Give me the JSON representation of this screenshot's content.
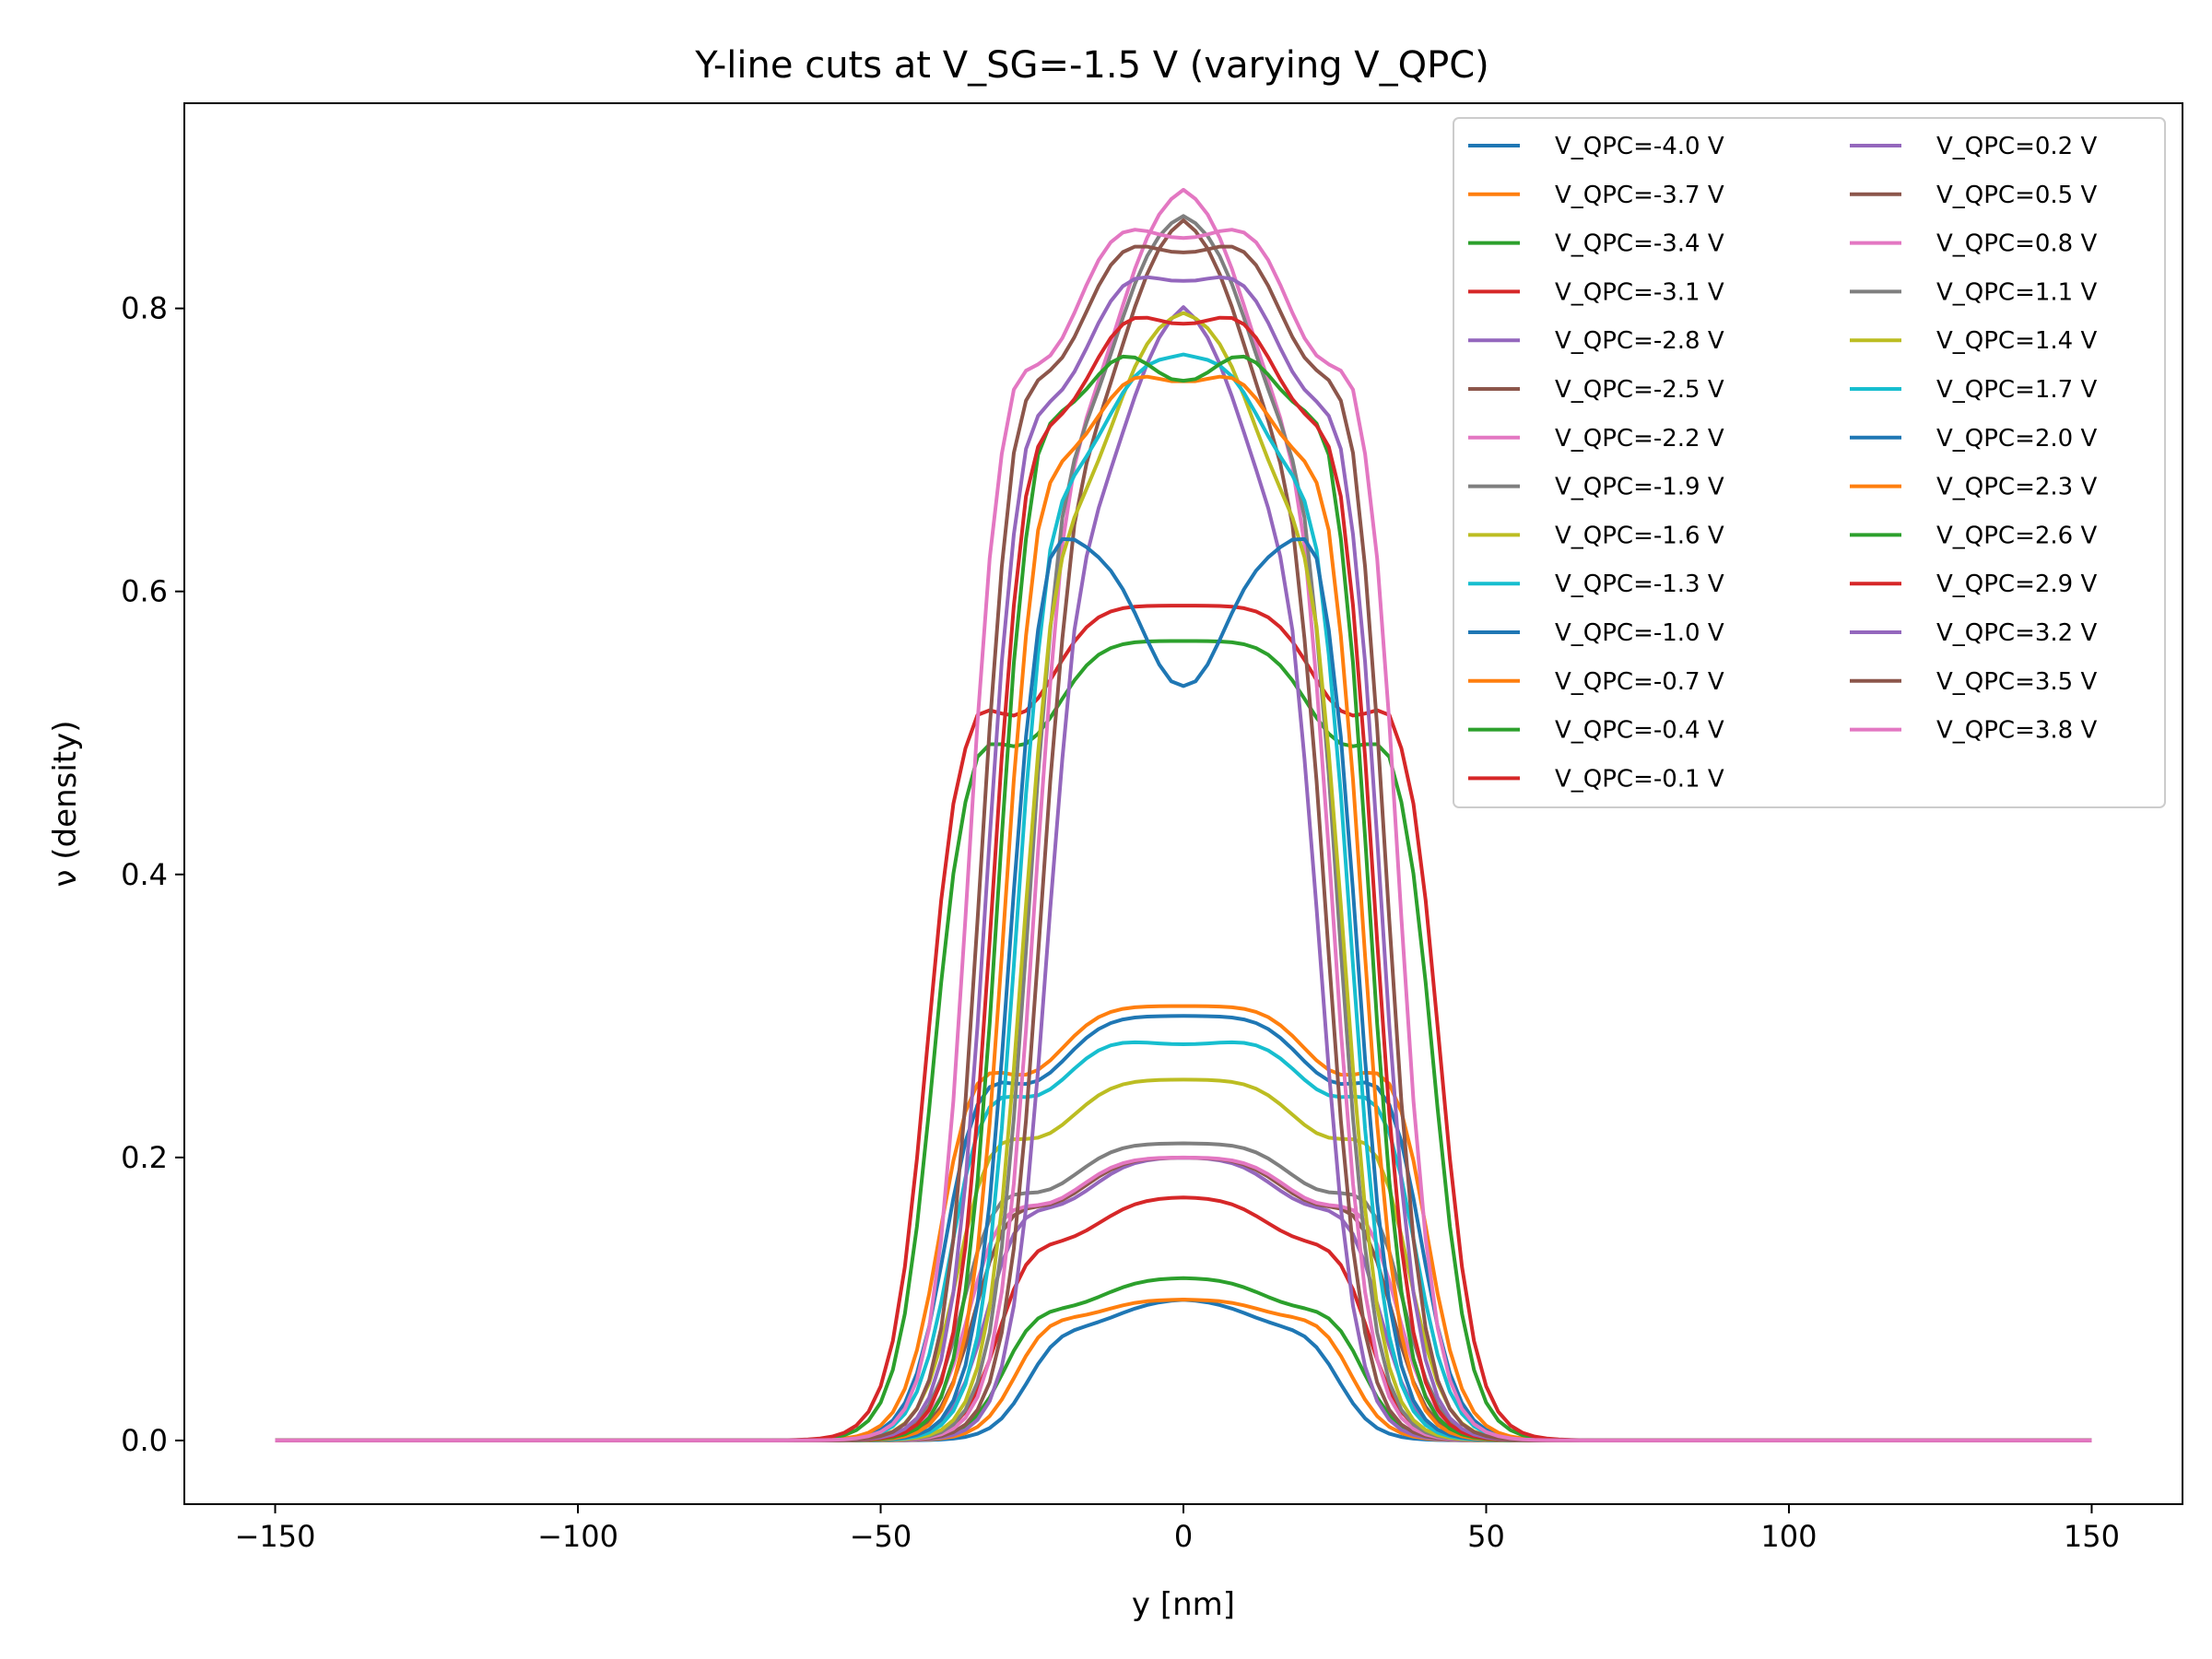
{
  "chart_data": {
    "type": "line",
    "title": "Y-line cuts at V_SG=-1.5 V (varying V_QPC)",
    "xlabel": "y [nm]",
    "ylabel": "ν (density)",
    "xlim": [
      -165,
      165
    ],
    "ylim": [
      -0.045,
      0.945
    ],
    "xticks": [
      -150,
      -100,
      -50,
      0,
      50,
      100,
      150
    ],
    "xtick_labels": [
      "−150",
      "−100",
      "−50",
      "0",
      "50",
      "100",
      "150"
    ],
    "yticks": [
      0.0,
      0.2,
      0.4,
      0.6,
      0.8
    ],
    "ytick_labels": [
      "0.0",
      "0.2",
      "0.4",
      "0.6",
      "0.8"
    ],
    "grid": false,
    "legend_position": "top-right",
    "legend_columns": 2,
    "series": [
      {
        "name": "V_QPC=-4.0 V",
        "color": "#1f77b4",
        "profile": {
          "width": 25,
          "peak": 0.1,
          "center_dip": 0.0
        }
      },
      {
        "name": "V_QPC=-3.7 V",
        "color": "#ff7f0e",
        "profile": {
          "width": 27,
          "peak": 0.11,
          "center_dip": 0.01
        }
      },
      {
        "name": "V_QPC=-3.4 V",
        "color": "#2ca02c",
        "profile": {
          "width": 29,
          "peak": 0.115,
          "center_dip": 0.0
        }
      },
      {
        "name": "V_QPC=-3.1 V",
        "color": "#d62728",
        "profile": {
          "width": 30,
          "peak": 0.172,
          "center_dip": 0.0
        }
      },
      {
        "name": "V_QPC=-2.8 V",
        "color": "#9467bd",
        "profile": {
          "width": 32,
          "peak": 0.2,
          "center_dip": 0.0
        }
      },
      {
        "name": "V_QPC=-2.5 V",
        "color": "#8c564b",
        "profile": {
          "width": 34,
          "peak": 0.2,
          "center_dip": 0.0
        }
      },
      {
        "name": "V_QPC=-2.2 V",
        "color": "#e377c2",
        "profile": {
          "width": 35,
          "peak": 0.2,
          "center_dip": 0.0
        }
      },
      {
        "name": "V_QPC=-1.9 V",
        "color": "#7f7f7f",
        "profile": {
          "width": 36,
          "peak": 0.21,
          "center_dip": 0.0
        }
      },
      {
        "name": "V_QPC=-1.6 V",
        "color": "#bcbd22",
        "profile": {
          "width": 37,
          "peak": 0.255,
          "center_dip": 0.0
        }
      },
      {
        "name": "V_QPC=-1.3 V",
        "color": "#17becf",
        "profile": {
          "width": 38,
          "peak": 0.29,
          "center_dip": 0.01
        }
      },
      {
        "name": "V_QPC=-1.0 V",
        "color": "#1f77b4",
        "profile": {
          "width": 39,
          "peak": 0.3,
          "center_dip": 0.0
        }
      },
      {
        "name": "V_QPC=-0.7 V",
        "color": "#ff7f0e",
        "profile": {
          "width": 40,
          "peak": 0.307,
          "center_dip": 0.0
        }
      },
      {
        "name": "V_QPC=-0.4 V",
        "color": "#2ca02c",
        "profile": {
          "width": 41,
          "peak": 0.565,
          "center_dip": 0.0
        }
      },
      {
        "name": "V_QPC=-0.1 V",
        "color": "#d62728",
        "profile": {
          "width": 42,
          "peak": 0.59,
          "center_dip": 0.0
        }
      },
      {
        "name": "V_QPC=0.2 V",
        "color": "#9467bd",
        "profile": {
          "width": 22,
          "peak": 0.81,
          "center_dip": 0.0
        }
      },
      {
        "name": "V_QPC=0.5 V",
        "color": "#8c564b",
        "profile": {
          "width": 23,
          "peak": 0.87,
          "center_dip": 0.0
        }
      },
      {
        "name": "V_QPC=0.8 V",
        "color": "#e377c2",
        "profile": {
          "width": 24,
          "peak": 0.89,
          "center_dip": 0.0
        }
      },
      {
        "name": "V_QPC=1.1 V",
        "color": "#7f7f7f",
        "profile": {
          "width": 25,
          "peak": 0.87,
          "center_dip": 0.0
        }
      },
      {
        "name": "V_QPC=1.4 V",
        "color": "#bcbd22",
        "profile": {
          "width": 26,
          "peak": 0.8,
          "center_dip": 0.0
        }
      },
      {
        "name": "V_QPC=1.7 V",
        "color": "#17becf",
        "profile": {
          "width": 27,
          "peak": 0.84,
          "center_dip": 0.07
        }
      },
      {
        "name": "V_QPC=2.0 V",
        "color": "#1f77b4",
        "profile": {
          "width": 28,
          "peak": 0.825,
          "center_dip": 0.29
        }
      },
      {
        "name": "V_QPC=2.3 V",
        "color": "#ff7f0e",
        "profile": {
          "width": 29,
          "peak": 0.85,
          "center_dip": 0.1
        }
      },
      {
        "name": "V_QPC=2.6 V",
        "color": "#2ca02c",
        "profile": {
          "width": 30,
          "peak": 0.89,
          "center_dip": 0.14
        }
      },
      {
        "name": "V_QPC=2.9 V",
        "color": "#d62728",
        "profile": {
          "width": 31,
          "peak": 0.87,
          "center_dip": 0.08
        }
      },
      {
        "name": "V_QPC=3.2 V",
        "color": "#9467bd",
        "profile": {
          "width": 32,
          "peak": 0.88,
          "center_dip": 0.06
        }
      },
      {
        "name": "V_QPC=3.5 V",
        "color": "#8c564b",
        "profile": {
          "width": 33,
          "peak": 0.9,
          "center_dip": 0.06
        }
      },
      {
        "name": "V_QPC=3.8 V",
        "color": "#e377c2",
        "profile": {
          "width": 35,
          "peak": 0.9,
          "center_dip": 0.05
        }
      }
    ]
  }
}
